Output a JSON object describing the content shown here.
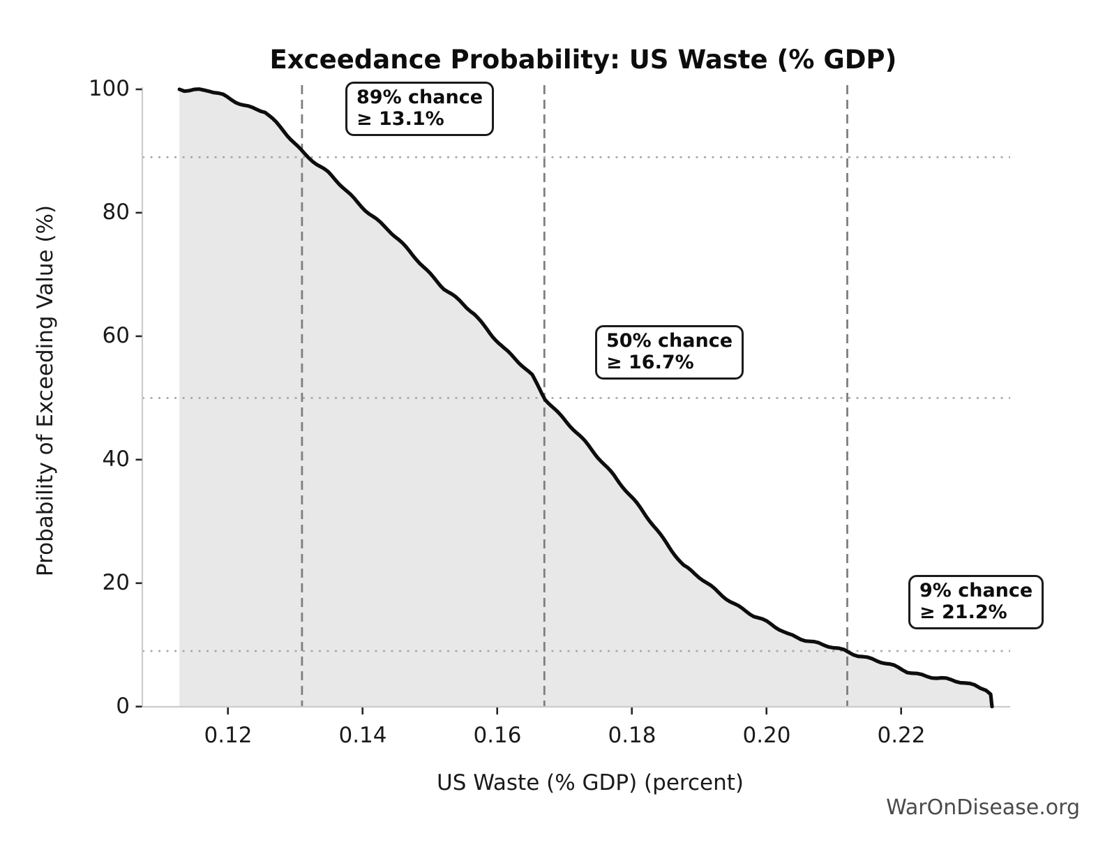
{
  "title": "Exceedance Probability: US Waste (% GDP)",
  "watermark": "WarOnDisease.org",
  "chart_data": {
    "type": "area",
    "title": "Exceedance Probability: US Waste (% GDP)",
    "xlabel": "US Waste (% GDP) (percent)",
    "ylabel": "Probability of Exceeding Value (%)",
    "xlim": [
      0.1073,
      0.2362
    ],
    "ylim": [
      0,
      100
    ],
    "grid": "off",
    "legend": "none",
    "x_ticks": [
      "0.12",
      "0.14",
      "0.16",
      "0.18",
      "0.20",
      "0.22"
    ],
    "x_tick_values": [
      0.12,
      0.14,
      0.16,
      0.18,
      0.2,
      0.22
    ],
    "y_ticks": [
      "0",
      "20",
      "40",
      "60",
      "80",
      "100"
    ],
    "y_tick_values": [
      0,
      20,
      40,
      60,
      80,
      100
    ],
    "line_color": "#0d0d0d",
    "fill_color": "#e8e8e8",
    "dashed_guide_color": "#7e7e7e",
    "dotted_guide_color": "#a8a8a8",
    "points": [
      [
        0.1128,
        100
      ],
      [
        0.115,
        99.9
      ],
      [
        0.1172,
        99.7
      ],
      [
        0.1193,
        99.0
      ],
      [
        0.1224,
        97.5
      ],
      [
        0.1255,
        96.3
      ],
      [
        0.1283,
        93.2
      ],
      [
        0.1314,
        89.6
      ],
      [
        0.1349,
        86.4
      ],
      [
        0.1393,
        81.7
      ],
      [
        0.1438,
        77.2
      ],
      [
        0.148,
        72.6
      ],
      [
        0.1521,
        67.7
      ],
      [
        0.1566,
        63.6
      ],
      [
        0.1611,
        57.9
      ],
      [
        0.1652,
        53.6
      ],
      [
        0.1671,
        50.0
      ],
      [
        0.1722,
        43.8
      ],
      [
        0.1773,
        37.6
      ],
      [
        0.1825,
        30.3
      ],
      [
        0.1877,
        22.9
      ],
      [
        0.1929,
        18.4
      ],
      [
        0.1981,
        14.7
      ],
      [
        0.2032,
        11.8
      ],
      [
        0.2084,
        9.9
      ],
      [
        0.2115,
        9.1
      ],
      [
        0.2157,
        7.7
      ],
      [
        0.2209,
        5.7
      ],
      [
        0.226,
        4.5
      ],
      [
        0.2309,
        3.5
      ],
      [
        0.2326,
        2.9
      ],
      [
        0.2333,
        2.0
      ],
      [
        0.2335,
        0
      ]
    ],
    "guides": {
      "dashed_x": [
        0.131,
        0.167,
        0.212
      ],
      "dotted_y": [
        89,
        50,
        9
      ]
    },
    "annotations": [
      {
        "chance": "89%",
        "threshold": "13.1%",
        "line1": "89% chance",
        "line2": "≥ 13.1%"
      },
      {
        "chance": "50%",
        "threshold": "16.7%",
        "line1": "50% chance",
        "line2": "≥ 16.7%"
      },
      {
        "chance": "9%",
        "threshold": "21.2%",
        "line1": "9% chance",
        "line2": "≥ 21.2%"
      }
    ]
  }
}
